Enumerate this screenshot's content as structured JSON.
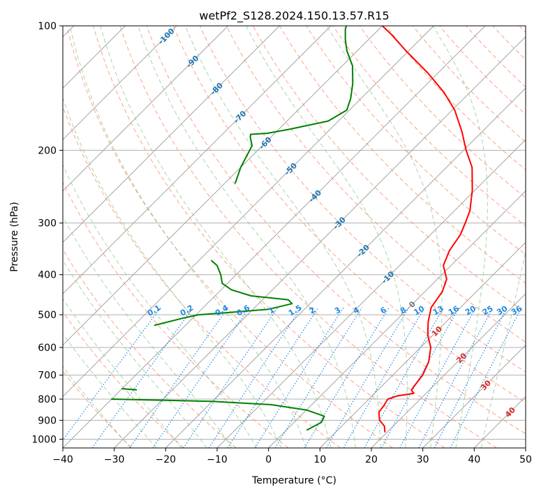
{
  "chart_data": {
    "type": "line",
    "diagram": "skew-t log-p",
    "title": "wetPf2_S128.2024.150.13.57.R15",
    "xlabel": "Temperature (°C)",
    "ylabel": "Pressure (hPa)",
    "xlim": [
      -40,
      50
    ],
    "ylim_hpa": [
      1050,
      100
    ],
    "y_scale": "log",
    "grid": true,
    "x_ticks": [
      -40,
      -30,
      -20,
      -10,
      0,
      10,
      20,
      30,
      40,
      50
    ],
    "y_ticks": [
      1000,
      900,
      800,
      700,
      600,
      500,
      400,
      300,
      200,
      100
    ],
    "series": [
      {
        "color": "#ff0000",
        "points": [
          {
            "p": 960,
            "t": 19.5
          },
          {
            "p": 930,
            "t": 18.3
          },
          {
            "p": 900,
            "t": 16.2
          },
          {
            "p": 860,
            "t": 14.5
          },
          {
            "p": 830,
            "t": 14.2
          },
          {
            "p": 800,
            "t": 13.7
          },
          {
            "p": 785,
            "t": 15.0
          },
          {
            "p": 775,
            "t": 17.6
          },
          {
            "p": 760,
            "t": 16.5
          },
          {
            "p": 745,
            "t": 16.3
          },
          {
            "p": 700,
            "t": 15.8
          },
          {
            "p": 650,
            "t": 14.4
          },
          {
            "p": 600,
            "t": 12.0
          },
          {
            "p": 560,
            "t": 9.0
          },
          {
            "p": 520,
            "t": 6.5
          },
          {
            "p": 480,
            "t": 4.3
          },
          {
            "p": 440,
            "t": 3.4
          },
          {
            "p": 410,
            "t": 1.8
          },
          {
            "p": 380,
            "t": -1.5
          },
          {
            "p": 350,
            "t": -3.2
          },
          {
            "p": 320,
            "t": -4.2
          },
          {
            "p": 300,
            "t": -5.5
          },
          {
            "p": 280,
            "t": -7.0
          },
          {
            "p": 250,
            "t": -10.5
          },
          {
            "p": 220,
            "t": -15.0
          },
          {
            "p": 200,
            "t": -19.5
          },
          {
            "p": 180,
            "t": -24.0
          },
          {
            "p": 160,
            "t": -29.5
          },
          {
            "p": 145,
            "t": -35.0
          },
          {
            "p": 130,
            "t": -42.0
          },
          {
            "p": 115,
            "t": -50.5
          },
          {
            "p": 105,
            "t": -56.5
          },
          {
            "p": 100,
            "t": -60.0
          }
        ]
      },
      {
        "color": "#008000",
        "points": [
          {
            "p": 950,
            "t": 4.0
          },
          {
            "p": 910,
            "t": 5.3
          },
          {
            "p": 880,
            "t": 4.7
          },
          {
            "p": 850,
            "t": 0.0
          },
          {
            "p": 825,
            "t": -8.0
          },
          {
            "p": 810,
            "t": -20.0
          },
          {
            "p": 800,
            "t": -40.0
          }
        ]
      },
      {
        "color": "#008000",
        "points": [
          {
            "p": 760,
            "t": -37.0
          },
          {
            "p": 755,
            "t": -40.0
          }
        ]
      },
      {
        "color": "#008000",
        "points": [
          {
            "p": 530,
            "t": -46.0
          },
          {
            "p": 510,
            "t": -42.0
          },
          {
            "p": 500,
            "t": -39.5
          },
          {
            "p": 495,
            "t": -35.0
          },
          {
            "p": 485,
            "t": -27.0
          },
          {
            "p": 470,
            "t": -23.5
          },
          {
            "p": 460,
            "t": -25.0
          },
          {
            "p": 450,
            "t": -33.0
          },
          {
            "p": 435,
            "t": -38.0
          },
          {
            "p": 420,
            "t": -41.0
          },
          {
            "p": 400,
            "t": -43.0
          },
          {
            "p": 380,
            "t": -45.5
          },
          {
            "p": 370,
            "t": -47.5
          }
        ]
      },
      {
        "color": "#008000",
        "points": [
          {
            "p": 240,
            "t": -58.0
          },
          {
            "p": 220,
            "t": -60.0
          },
          {
            "p": 195,
            "t": -62.0
          },
          {
            "p": 186,
            "t": -64.0
          },
          {
            "p": 183,
            "t": -64.5
          },
          {
            "p": 182,
            "t": -61.5
          },
          {
            "p": 178,
            "t": -58.0
          },
          {
            "p": 170,
            "t": -52.0
          },
          {
            "p": 160,
            "t": -50.5
          },
          {
            "p": 150,
            "t": -52.0
          },
          {
            "p": 138,
            "t": -54.5
          },
          {
            "p": 125,
            "t": -58.0
          },
          {
            "p": 115,
            "t": -62.0
          },
          {
            "p": 108,
            "t": -64.5
          },
          {
            "p": 102,
            "t": -66.5
          },
          {
            "p": 100,
            "t": -67.0
          }
        ]
      }
    ],
    "background_lines": {
      "isotherm_spacing_c": 10,
      "dry_adiabats": true,
      "moist_adiabats": true,
      "mixing_ratio_lines": [
        0.1,
        0.2,
        0.4,
        0.6,
        1,
        1.5,
        2,
        3,
        4,
        6,
        8,
        10,
        13,
        16,
        20,
        25,
        30,
        36
      ],
      "isotherm_labels": [
        -100,
        -90,
        -80,
        -70,
        -60,
        -50,
        -40,
        -30,
        -20,
        -10,
        0,
        10,
        20,
        30,
        40
      ]
    },
    "colors": {
      "temperature": "#ff0000",
      "dewpoint": "#008000",
      "isotherm": "#999999",
      "dry_adiabat": "#fc9272",
      "moist_adiabat": "#8bc78b",
      "mixing_ratio": "#1e88e5",
      "pressure_grid": "#b0b0b0",
      "isotherm_label_cold": "#1f77b4",
      "isotherm_label_warm": "#d62728",
      "isotherm_label_zero": "#777777"
    }
  }
}
